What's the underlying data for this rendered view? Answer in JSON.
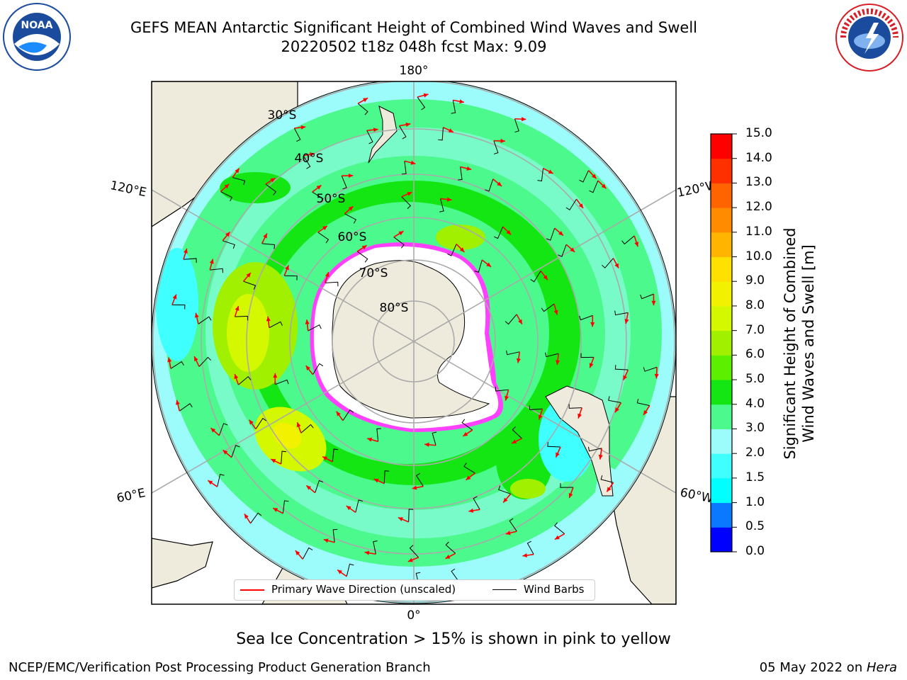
{
  "title_line1": "GEFS MEAN Antarctic Significant Height of Combined Wind Waves and Swell",
  "title_line2": "20220502 t18z 048h fcst   Max: 9.09",
  "logos": {
    "left": "NOAA",
    "right": "NATIONAL WEATHER SERVICE"
  },
  "map": {
    "projection": "south-polar-stereographic",
    "longitude_labels": [
      "180°",
      "120°E",
      "120°W",
      "60°E",
      "60°W",
      "0°"
    ],
    "latitude_labels": [
      "30°S",
      "40°S",
      "50°S",
      "60°S",
      "70°S",
      "80°S"
    ]
  },
  "colorbar": {
    "title": "Significant Height of Combined Wind Waves and Swell [m]",
    "title_line1": "Significant Height of Combined",
    "title_line2": "Wind Waves and Swell [m]",
    "ticks": [
      "0.0",
      "0.5",
      "1.0",
      "1.5",
      "2.0",
      "3.0",
      "4.0",
      "5.0",
      "6.0",
      "7.0",
      "8.0",
      "9.0",
      "10.0",
      "11.0",
      "12.0",
      "13.0",
      "14.0",
      "15.0"
    ],
    "colors": [
      "#0000ff",
      "#0a78ff",
      "#00ffff",
      "#40ffff",
      "#9cfcfc",
      "#4cf98c",
      "#14e614",
      "#5cf000",
      "#a0f000",
      "#d4f800",
      "#f2f200",
      "#ffe000",
      "#ffb400",
      "#ff8c00",
      "#ff6400",
      "#ff3000",
      "#ff0000"
    ]
  },
  "legend": {
    "wave_label": "Primary Wave Direction (unscaled)",
    "wave_color": "#ff0000",
    "barb_label": "Wind Barbs",
    "barb_color": "#000000"
  },
  "note": "Sea Ice Concentration > 15% is shown in pink to yellow",
  "footer_left": "NCEP/EMC/Verification Post Processing Product Generation Branch",
  "footer_date": "05 May 2022 on ",
  "footer_host": "Hera"
}
